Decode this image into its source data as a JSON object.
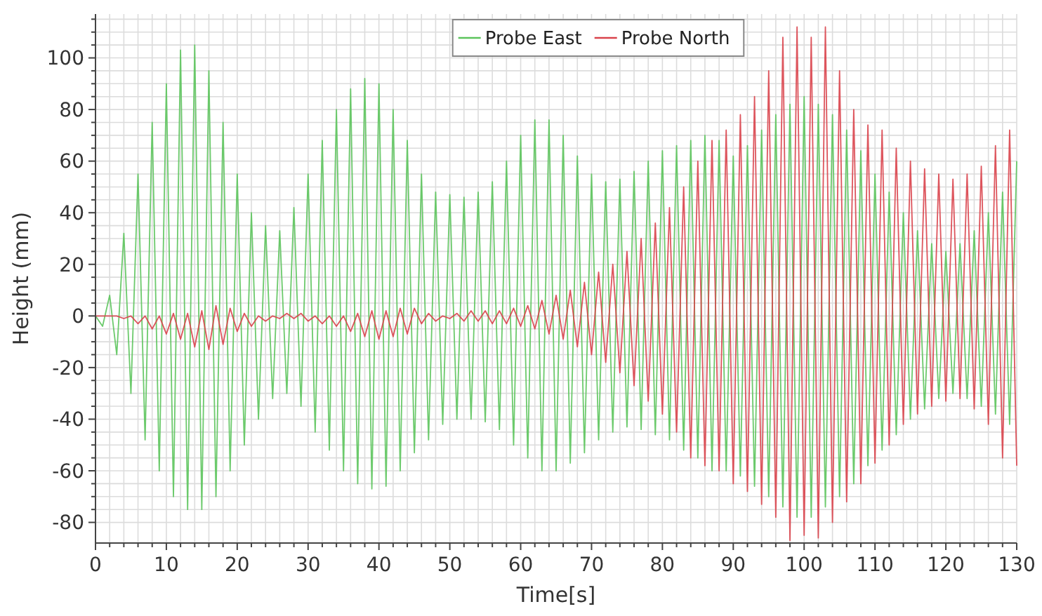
{
  "chart_data": {
    "type": "line",
    "xlabel": "Time[s]",
    "ylabel": "Height (mm)",
    "x": [
      0,
      1,
      2,
      3,
      4,
      5,
      6,
      7,
      8,
      9,
      10,
      11,
      12,
      13,
      14,
      15,
      16,
      17,
      18,
      19,
      20,
      21,
      22,
      23,
      24,
      25,
      26,
      27,
      28,
      29,
      30,
      31,
      32,
      33,
      34,
      35,
      36,
      37,
      38,
      39,
      40,
      41,
      42,
      43,
      44,
      45,
      46,
      47,
      48,
      49,
      50,
      51,
      52,
      53,
      54,
      55,
      56,
      57,
      58,
      59,
      60,
      61,
      62,
      63,
      64,
      65,
      66,
      67,
      68,
      69,
      70,
      71,
      72,
      73,
      74,
      75,
      76,
      77,
      78,
      79,
      80,
      81,
      82,
      83,
      84,
      85,
      86,
      87,
      88,
      89,
      90,
      91,
      92,
      93,
      94,
      95,
      96,
      97,
      98,
      99,
      100,
      101,
      102,
      103,
      104,
      105,
      106,
      107,
      108,
      109,
      110,
      111,
      112,
      113,
      114,
      115,
      116,
      117,
      118,
      119,
      120,
      121,
      122,
      123,
      124,
      125,
      126,
      127,
      128,
      129,
      130
    ],
    "xlim": [
      0,
      130
    ],
    "xticks": [
      0,
      {
        "value": 2,
        "label": null
      },
      {
        "value": 4,
        "label": null
      },
      {
        "value": 6,
        "label": null
      },
      {
        "value": 8,
        "label": null
      },
      10,
      {
        "value": 12,
        "label": null
      },
      {
        "value": 14,
        "label": null
      },
      {
        "value": 16,
        "label": null
      },
      {
        "value": 18,
        "label": null
      },
      20,
      {
        "value": 22,
        "label": null
      },
      {
        "value": 24,
        "label": null
      },
      {
        "value": 26,
        "label": null
      },
      {
        "value": 28,
        "label": null
      },
      30,
      {
        "value": 32,
        "label": null
      },
      {
        "value": 34,
        "label": null
      },
      {
        "value": 36,
        "label": null
      },
      {
        "value": 38,
        "label": null
      },
      40,
      {
        "value": 42,
        "label": null
      },
      {
        "value": 44,
        "label": null
      },
      {
        "value": 46,
        "label": null
      },
      {
        "value": 48,
        "label": null
      },
      50,
      {
        "value": 52,
        "label": null
      },
      {
        "value": 54,
        "label": null
      },
      {
        "value": 56,
        "label": null
      },
      {
        "value": 58,
        "label": null
      },
      60,
      {
        "value": 62,
        "label": null
      },
      {
        "value": 64,
        "label": null
      },
      {
        "value": 66,
        "label": null
      },
      {
        "value": 68,
        "label": null
      },
      70,
      {
        "value": 72,
        "label": null
      },
      {
        "value": 74,
        "label": null
      },
      {
        "value": 76,
        "label": null
      },
      {
        "value": 78,
        "label": null
      },
      80,
      {
        "value": 82,
        "label": null
      },
      {
        "value": 84,
        "label": null
      },
      {
        "value": 86,
        "label": null
      },
      {
        "value": 88,
        "label": null
      },
      90,
      {
        "value": 92,
        "label": null
      },
      {
        "value": 94,
        "label": null
      },
      {
        "value": 96,
        "label": null
      },
      {
        "value": 98,
        "label": null
      },
      100,
      {
        "value": 102,
        "label": null
      },
      {
        "value": 104,
        "label": null
      },
      {
        "value": 106,
        "label": null
      },
      {
        "value": 108,
        "label": null
      },
      110,
      {
        "value": 112,
        "label": null
      },
      {
        "value": 114,
        "label": null
      },
      {
        "value": 116,
        "label": null
      },
      {
        "value": 118,
        "label": null
      },
      120,
      {
        "value": 122,
        "label": null
      },
      {
        "value": 124,
        "label": null
      },
      {
        "value": 126,
        "label": null
      },
      {
        "value": 128,
        "label": null
      },
      130
    ],
    "ylim": [
      -88,
      117
    ],
    "yticks": [
      -80,
      {
        "value": -75,
        "label": null
      },
      {
        "value": -70,
        "label": null
      },
      {
        "value": -65,
        "label": null
      },
      -60,
      {
        "value": -55,
        "label": null
      },
      {
        "value": -50,
        "label": null
      },
      {
        "value": -45,
        "label": null
      },
      -40,
      {
        "value": -35,
        "label": null
      },
      {
        "value": -30,
        "label": null
      },
      {
        "value": -25,
        "label": null
      },
      -20,
      {
        "value": -15,
        "label": null
      },
      {
        "value": -10,
        "label": null
      },
      {
        "value": -5,
        "label": null
      },
      0,
      {
        "value": 5,
        "label": null
      },
      {
        "value": 10,
        "label": null
      },
      {
        "value": 15,
        "label": null
      },
      20,
      {
        "value": 25,
        "label": null
      },
      {
        "value": 30,
        "label": null
      },
      {
        "value": 35,
        "label": null
      },
      40,
      {
        "value": 45,
        "label": null
      },
      {
        "value": 50,
        "label": null
      },
      {
        "value": 55,
        "label": null
      },
      60,
      {
        "value": 65,
        "label": null
      },
      {
        "value": 70,
        "label": null
      },
      {
        "value": 75,
        "label": null
      },
      80,
      {
        "value": 85,
        "label": null
      },
      {
        "value": 90,
        "label": null
      },
      {
        "value": 95,
        "label": null
      },
      100,
      {
        "value": 105,
        "label": null
      },
      {
        "value": 110,
        "label": null
      },
      {
        "value": 115,
        "label": null
      }
    ],
    "grid": true,
    "legend": "top",
    "marker": "none",
    "line_style": "solid",
    "series": [
      {
        "name": "Probe East",
        "color": "#5cc45c",
        "values": [
          0,
          -4,
          8,
          -15,
          32,
          -30,
          55,
          -48,
          75,
          -60,
          90,
          -70,
          103,
          -75,
          105,
          -75,
          95,
          -70,
          75,
          -60,
          55,
          -50,
          40,
          -40,
          35,
          -32,
          33,
          -30,
          42,
          -35,
          55,
          -45,
          68,
          -52,
          80,
          -60,
          88,
          -65,
          92,
          -67,
          90,
          -66,
          80,
          -60,
          68,
          -53,
          55,
          -48,
          48,
          -42,
          47,
          -40,
          46,
          -40,
          48,
          -41,
          52,
          -44,
          60,
          -50,
          70,
          -55,
          76,
          -60,
          76,
          -60,
          70,
          -57,
          62,
          -53,
          55,
          -48,
          52,
          -45,
          53,
          -43,
          56,
          -44,
          60,
          -46,
          64,
          -48,
          66,
          -52,
          68,
          -55,
          70,
          -60,
          68,
          -60,
          62,
          -62,
          66,
          -66,
          72,
          -70,
          78,
          -74,
          82,
          -78,
          85,
          -78,
          82,
          -74,
          78,
          -70,
          72,
          -65,
          64,
          -58,
          55,
          -52,
          48,
          -46,
          40,
          -40,
          33,
          -36,
          28,
          -32,
          25,
          -30,
          28,
          -32,
          33,
          -35,
          40,
          -38,
          48,
          -42,
          60
        ]
      },
      {
        "name": "Probe North",
        "color": "#d9434b",
        "values": [
          0,
          0,
          0,
          0,
          -1,
          0,
          -3,
          0,
          -5,
          0,
          -7,
          1,
          -9,
          1,
          -12,
          2,
          -13,
          4,
          -11,
          3,
          -6,
          1,
          -4,
          0,
          -2,
          0,
          -1,
          1,
          -1,
          1,
          -2,
          0,
          -3,
          0,
          -4,
          0,
          -6,
          1,
          -8,
          2,
          -9,
          2,
          -8,
          3,
          -7,
          3,
          -3,
          1,
          -2,
          0,
          -1,
          1,
          -2,
          2,
          -2,
          2,
          -3,
          2,
          -3,
          3,
          -4,
          4,
          -5,
          6,
          -7,
          8,
          -9,
          10,
          -12,
          13,
          -15,
          17,
          -18,
          20,
          -22,
          25,
          -27,
          30,
          -33,
          36,
          -38,
          42,
          -45,
          50,
          -55,
          60,
          -58,
          68,
          -60,
          72,
          -65,
          78,
          -68,
          85,
          -73,
          95,
          -78,
          108,
          -87,
          112,
          -85,
          108,
          -86,
          112,
          -80,
          95,
          -72,
          80,
          -65,
          74,
          -57,
          72,
          -50,
          65,
          -42,
          60,
          -38,
          57,
          -35,
          55,
          -33,
          53,
          -32,
          55,
          -36,
          58,
          -42,
          66,
          -55,
          72,
          -58
        ]
      }
    ]
  }
}
